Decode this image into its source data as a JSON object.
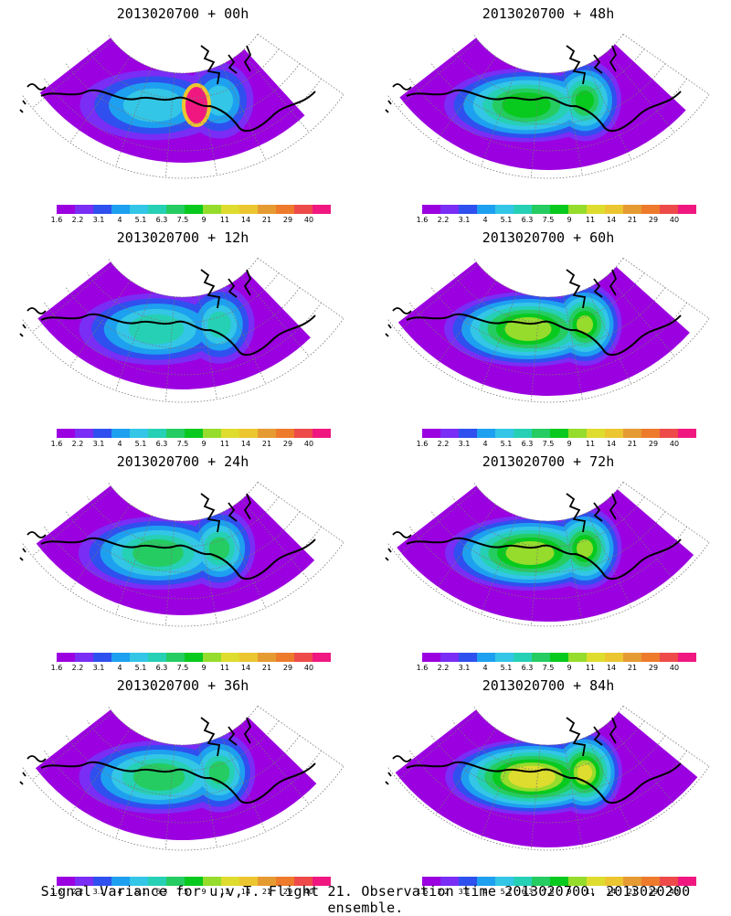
{
  "colorbar": {
    "colors": [
      "#9b00e0",
      "#7a2df5",
      "#2f50ee",
      "#1ea0f0",
      "#33c6e6",
      "#26d0b4",
      "#25cc61",
      "#08c91e",
      "#96dc2c",
      "#dedc2e",
      "#ecc630",
      "#e59b32",
      "#ee7a2c",
      "#ee4a4a",
      "#f01880"
    ],
    "labels": [
      "1.6",
      "2.2",
      "3.1",
      "4",
      "5.1",
      "6.3",
      "7.5",
      "9",
      "11",
      "14",
      "21",
      "29",
      "40"
    ]
  },
  "panels": [
    {
      "title": "2013020700 + 00h",
      "level": 0.15,
      "hotspot": true
    },
    {
      "title": "2013020700 + 48h",
      "level": 0.55
    },
    {
      "title": "2013020700 + 12h",
      "level": 0.3
    },
    {
      "title": "2013020700 + 60h",
      "level": 0.65
    },
    {
      "title": "2013020700 + 24h",
      "level": 0.4
    },
    {
      "title": "2013020700 + 72h",
      "level": 0.75
    },
    {
      "title": "2013020700 + 36h",
      "level": 0.45
    },
    {
      "title": "2013020700 + 84h",
      "level": 0.85
    }
  ],
  "footer": "Signal Variance for u,v,T. Flight 21. Observation time 2013020700. 2013020200 ensemble."
}
